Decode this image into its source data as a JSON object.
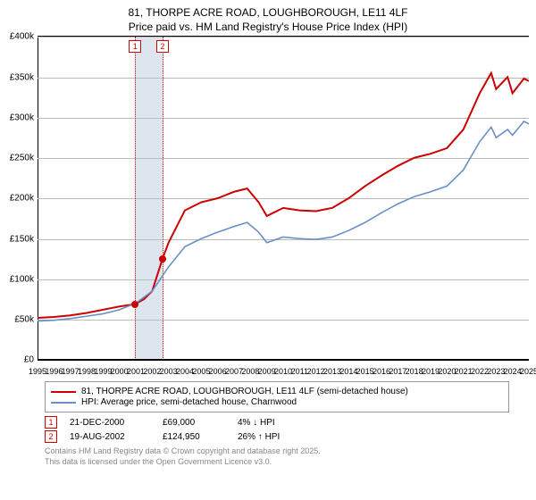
{
  "title_line1": "81, THORPE ACRE ROAD, LOUGHBOROUGH, LE11 4LF",
  "title_line2": "Price paid vs. HM Land Registry's House Price Index (HPI)",
  "chart": {
    "type": "line",
    "x_years": [
      1995,
      1996,
      1997,
      1998,
      1999,
      2000,
      2001,
      2002,
      2003,
      2004,
      2005,
      2006,
      2007,
      2008,
      2009,
      2010,
      2011,
      2012,
      2013,
      2014,
      2015,
      2016,
      2017,
      2018,
      2019,
      2020,
      2021,
      2022,
      2023,
      2024,
      2025
    ],
    "xlim": [
      1995,
      2025
    ],
    "ylim": [
      0,
      400000
    ],
    "ytick_step": 50000,
    "ylabels": [
      "£0",
      "£50k",
      "£100k",
      "£150k",
      "£200k",
      "£250k",
      "£300k",
      "£350k",
      "£400k"
    ],
    "grid_color": "#bbbbbb",
    "background_color": "#ffffff",
    "band": {
      "start": 2000.97,
      "end": 2002.63,
      "color": "#dde5ee"
    },
    "series": [
      {
        "name": "81, THORPE ACRE ROAD, LOUGHBOROUGH, LE11 4LF (semi-detached house)",
        "color": "#cc0000",
        "width": 2,
        "data": [
          [
            1995,
            52000
          ],
          [
            1996,
            53000
          ],
          [
            1997,
            55000
          ],
          [
            1998,
            58000
          ],
          [
            1999,
            62000
          ],
          [
            2000,
            66000
          ],
          [
            2000.97,
            69000
          ],
          [
            2001.5,
            75000
          ],
          [
            2002,
            85000
          ],
          [
            2002.63,
            124950
          ],
          [
            2003,
            145000
          ],
          [
            2003.5,
            165000
          ],
          [
            2004,
            185000
          ],
          [
            2005,
            195000
          ],
          [
            2006,
            200000
          ],
          [
            2007,
            208000
          ],
          [
            2007.8,
            212000
          ],
          [
            2008.5,
            195000
          ],
          [
            2009,
            178000
          ],
          [
            2010,
            188000
          ],
          [
            2011,
            185000
          ],
          [
            2012,
            184000
          ],
          [
            2013,
            188000
          ],
          [
            2014,
            200000
          ],
          [
            2015,
            215000
          ],
          [
            2016,
            228000
          ],
          [
            2017,
            240000
          ],
          [
            2018,
            250000
          ],
          [
            2019,
            255000
          ],
          [
            2020,
            262000
          ],
          [
            2021,
            285000
          ],
          [
            2022,
            330000
          ],
          [
            2022.7,
            355000
          ],
          [
            2023,
            335000
          ],
          [
            2023.7,
            350000
          ],
          [
            2024,
            330000
          ],
          [
            2024.7,
            348000
          ],
          [
            2025,
            345000
          ]
        ]
      },
      {
        "name": "HPI: Average price, semi-detached house, Charnwood",
        "color": "#6a8fc5",
        "width": 1.6,
        "data": [
          [
            1995,
            48000
          ],
          [
            1996,
            49000
          ],
          [
            1997,
            51000
          ],
          [
            1998,
            54000
          ],
          [
            1999,
            57000
          ],
          [
            2000,
            62000
          ],
          [
            2001,
            70000
          ],
          [
            2002,
            85000
          ],
          [
            2003,
            115000
          ],
          [
            2004,
            140000
          ],
          [
            2005,
            150000
          ],
          [
            2006,
            158000
          ],
          [
            2007,
            165000
          ],
          [
            2007.8,
            170000
          ],
          [
            2008.5,
            158000
          ],
          [
            2009,
            145000
          ],
          [
            2010,
            152000
          ],
          [
            2011,
            150000
          ],
          [
            2012,
            149000
          ],
          [
            2013,
            152000
          ],
          [
            2014,
            160000
          ],
          [
            2015,
            170000
          ],
          [
            2016,
            182000
          ],
          [
            2017,
            193000
          ],
          [
            2018,
            202000
          ],
          [
            2019,
            208000
          ],
          [
            2020,
            215000
          ],
          [
            2021,
            235000
          ],
          [
            2022,
            270000
          ],
          [
            2022.7,
            288000
          ],
          [
            2023,
            275000
          ],
          [
            2023.7,
            285000
          ],
          [
            2024,
            278000
          ],
          [
            2024.7,
            295000
          ],
          [
            2025,
            292000
          ]
        ]
      }
    ],
    "events": [
      {
        "n": "1",
        "year": 2000.97,
        "date": "21-DEC-2000",
        "price_val": 69000,
        "price": "£69,000",
        "delta": "4% ↓ HPI"
      },
      {
        "n": "2",
        "year": 2002.63,
        "date": "19-AUG-2002",
        "price_val": 124950,
        "price": "£124,950",
        "delta": "26% ↑ HPI"
      }
    ]
  },
  "legend_header": "",
  "footer1": "Contains HM Land Registry data © Crown copyright and database right 2025.",
  "footer2": "This data is licensed under the Open Government Licence v3.0."
}
